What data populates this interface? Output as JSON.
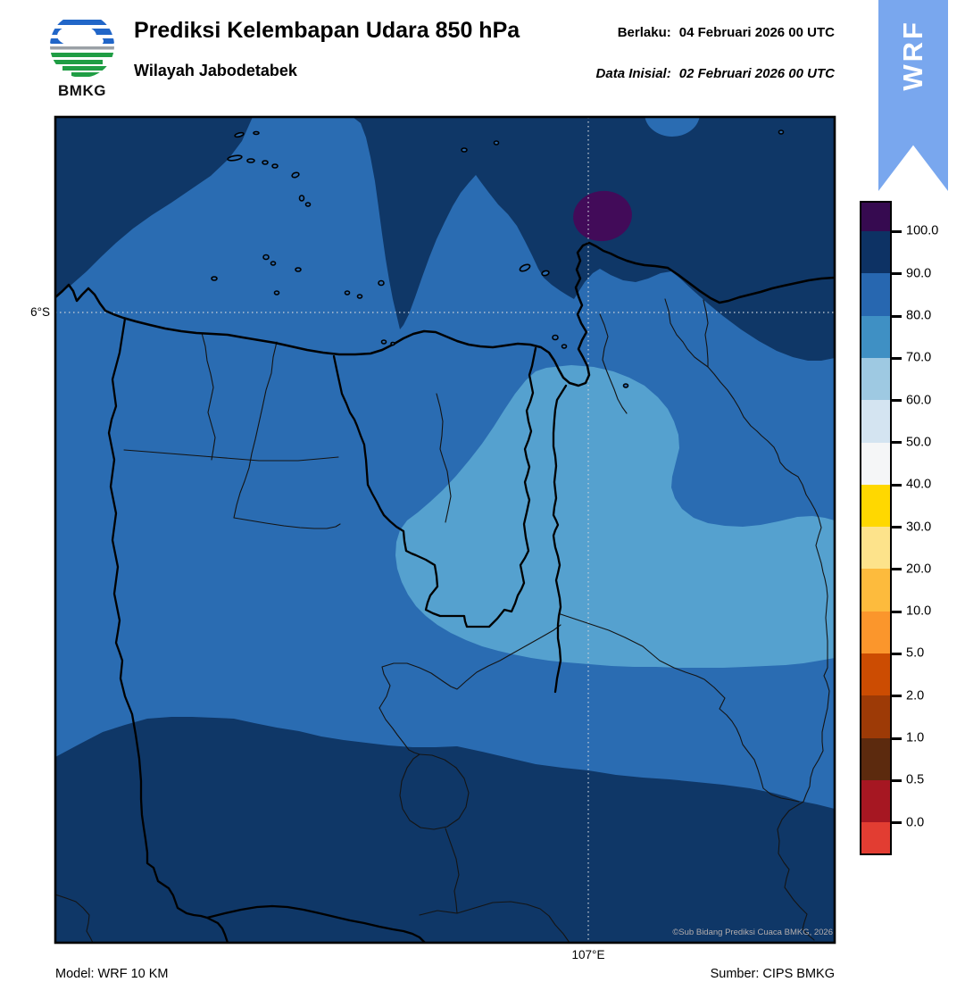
{
  "header": {
    "logo_text": "BMKG",
    "title": "Prediksi Kelembapan Udara 850 hPa",
    "subtitle": "Wilayah Jabodetabek",
    "berlaku_label": "Berlaku:",
    "berlaku_value": "04 Februari 2026 00 UTC",
    "inisial_label": "Data Inisial:",
    "inisial_value": "02 Februari 2026 00 UTC",
    "ribbon_label": "WRF"
  },
  "map": {
    "lat_tick_label": "6°S",
    "lon_tick_label": "107°E",
    "copyright": "©Sub Bidang Prediksi Cuaca BMKG, 2026"
  },
  "footer": {
    "model": "Model: WRF 10 KM",
    "source": "Sumber: CIPS BMKG"
  },
  "colorbar": {
    "ticks": [
      "100.0",
      "90.0",
      "80.0",
      "70.0",
      "60.0",
      "50.0",
      "40.0",
      "30.0",
      "20.0",
      "10.0",
      "5.0",
      "2.0",
      "1.0",
      "0.5",
      "0.0"
    ],
    "colors": [
      "#360a50",
      "#0d3264",
      "#2767b0",
      "#3f90c4",
      "#9ec9e2",
      "#d4e4f1",
      "#f5f6f7",
      "#ffd800",
      "#fde38b",
      "#fdbb3d",
      "#fb962c",
      "#cc4c02",
      "#9d3a06",
      "#5c2a0e",
      "#a61722",
      "#e23d32"
    ]
  },
  "chart_data": {
    "type": "heatmap",
    "title": "Prediksi Kelembapan Udara 850 hPa",
    "region": "Wilayah Jabodetabek",
    "valid_time": "04 Februari 2026 00 UTC",
    "initial_time": "02 Februari 2026 00 UTC",
    "model": "WRF 10 KM",
    "source": "CIPS BMKG",
    "gridline_labels": {
      "latitude": "6°S",
      "longitude": "107°E"
    },
    "colorbar_levels": [
      0,
      0.5,
      1,
      2,
      5,
      10,
      20,
      30,
      40,
      50,
      60,
      70,
      80,
      90,
      100
    ],
    "colorbar_colors_top_to_bottom": [
      "#360a50",
      "#0d3264",
      "#2767b0",
      "#3f90c4",
      "#9ec9e2",
      "#d4e4f1",
      "#f5f6f7",
      "#ffd800",
      "#fde38b",
      "#fdbb3d",
      "#fb962c",
      "#cc4c02",
      "#9d3a06",
      "#5c2a0e",
      "#a61722",
      "#e23d32"
    ],
    "visible_bands": [
      {
        "range": "> 100",
        "color": "#420b59",
        "where": "small oval offshore, north-east near 107°E above the coast"
      },
      {
        "range": "90–100",
        "color": "#0f3767",
        "where": "top-left corner, large north-east sea area, and southern third of the map"
      },
      {
        "range": "80–90",
        "color": "#2a6cb2",
        "where": "background over most of the central map and Jakarta Bay"
      },
      {
        "range": "70–80",
        "color": "#55a1cf",
        "where": "kidney-shaped area over Bekasi/Bogor extending east to the map edge"
      }
    ]
  }
}
